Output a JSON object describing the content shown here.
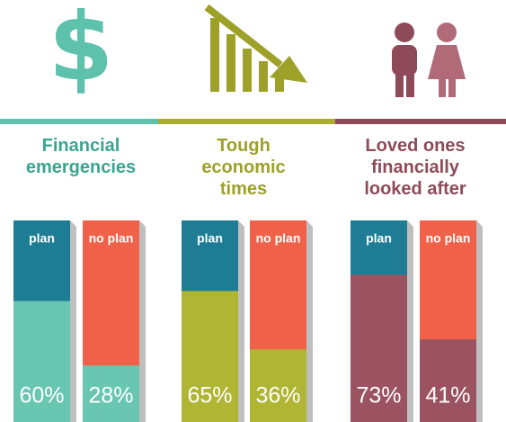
{
  "chart_data": [
    {
      "type": "bar",
      "title": "Financial\nemergencies",
      "categories": [
        "plan",
        "no plan"
      ],
      "values": [
        60,
        28
      ],
      "value_labels": [
        "60%",
        "28%"
      ],
      "color": "#68c6b1",
      "title_color": "#3aa58f",
      "header_colors": [
        "#1e7d95",
        "#ef6249"
      ]
    },
    {
      "type": "bar",
      "title": "Tough\neconomic\ntimes",
      "categories": [
        "plan",
        "no plan"
      ],
      "values": [
        65,
        36
      ],
      "value_labels": [
        "65%",
        "36%"
      ],
      "color": "#b1b534",
      "title_color": "#9da128",
      "header_colors": [
        "#1e7d95",
        "#ef6249"
      ]
    },
    {
      "type": "bar",
      "title": "Loved ones\nfinancially\nlooked after",
      "categories": [
        "plan",
        "no plan"
      ],
      "values": [
        73,
        41
      ],
      "value_labels": [
        "73%",
        "41%"
      ],
      "color": "#9b5361",
      "title_color": "#8e4a58",
      "header_colors": [
        "#1e7d95",
        "#ef6249"
      ]
    }
  ]
}
